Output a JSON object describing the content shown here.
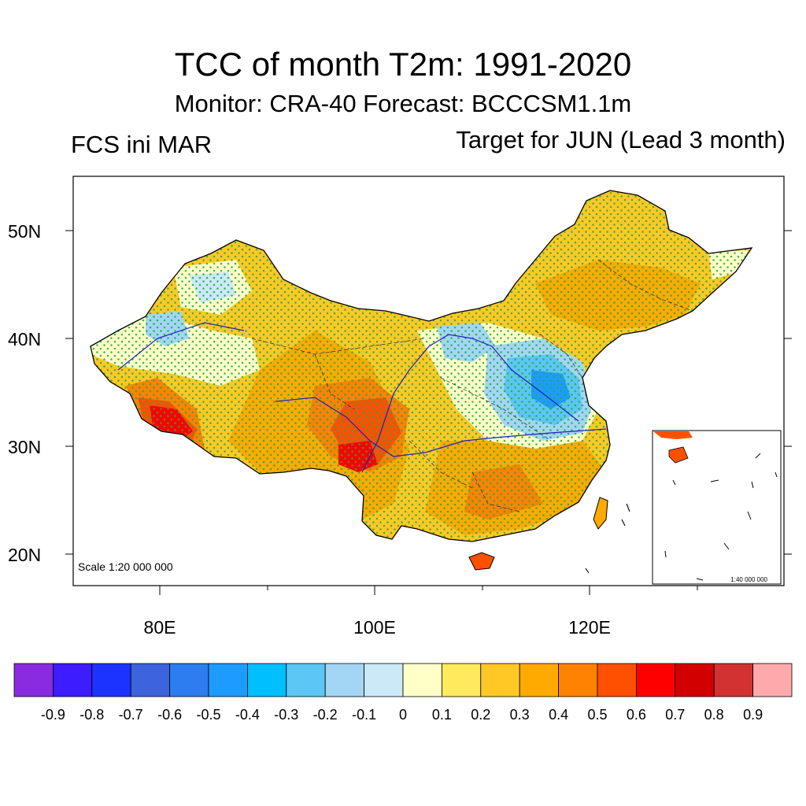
{
  "title": "TCC of month T2m: 1991-2020",
  "subtitle": "Monitor: CRA-40   Forecast: BCCCSM1.1m",
  "left_label": "FCS ini MAR",
  "right_label": "Target for JUN (Lead 3 month)",
  "scale_main": "Scale 1:20 000 000",
  "scale_inset": "1:40 000 000",
  "axes": {
    "lat_labels": [
      "50N",
      "40N",
      "30N",
      "20N"
    ],
    "lon_labels": [
      "80E",
      "100E",
      "120E"
    ]
  },
  "colorbar": {
    "colors": [
      "#8a2be2",
      "#3d1cff",
      "#1c33ff",
      "#3d63dd",
      "#2b7df0",
      "#1e9bff",
      "#00bfff",
      "#5cc6f5",
      "#a3d6f5",
      "#cce9f8",
      "#ffffc8",
      "#ffe95c",
      "#ffc825",
      "#ffaa00",
      "#ff8200",
      "#ff5000",
      "#ff0000",
      "#d20000",
      "#d23232",
      "#ffaaaa"
    ],
    "labels": [
      "-0.9",
      "-0.8",
      "-0.7",
      "-0.6",
      "-0.5",
      "-0.4",
      "-0.3",
      "-0.2",
      "-0.1",
      "0",
      "0.1",
      "0.2",
      "0.3",
      "0.4",
      "0.5",
      "0.6",
      "0.7",
      "0.8",
      "0.9"
    ]
  }
}
